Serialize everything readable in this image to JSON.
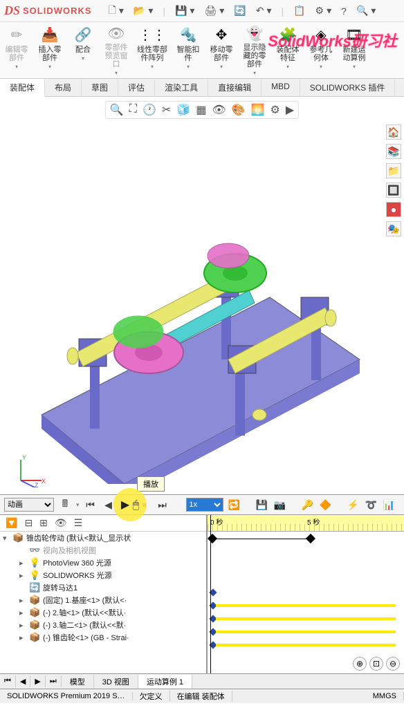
{
  "app": {
    "name": "SOLIDWORKS",
    "logo_prefix": "DS"
  },
  "watermark": "SolidWorks研习社",
  "qat": {
    "items": [
      "new",
      "open",
      "save",
      "print",
      "undo",
      "redo",
      "options",
      "rebuild",
      "settings",
      "help",
      "search"
    ]
  },
  "ribbon": {
    "items": [
      {
        "id": "edit-component",
        "label": "编辑零\n部件",
        "enabled": false
      },
      {
        "id": "insert-component",
        "label": "插入零\n部件",
        "enabled": true
      },
      {
        "id": "mate",
        "label": "配合",
        "enabled": true
      },
      {
        "id": "preview-window",
        "label": "零部件\n预览窗\n口",
        "enabled": false
      },
      {
        "id": "linear-pattern",
        "label": "线性零部\n件阵列",
        "enabled": true
      },
      {
        "id": "smart-fastener",
        "label": "智能扣\n件",
        "enabled": true
      },
      {
        "id": "move-component",
        "label": "移动零\n部件",
        "enabled": true
      },
      {
        "id": "show-hidden",
        "label": "显示隐\n藏的零\n部件",
        "enabled": true
      },
      {
        "id": "assembly-feature",
        "label": "装配体\n特征",
        "enabled": true
      },
      {
        "id": "reference-geom",
        "label": "参考几\n何体",
        "enabled": true
      },
      {
        "id": "new-motion",
        "label": "新建运\n动算例",
        "enabled": true
      }
    ]
  },
  "tabs": {
    "items": [
      "装配体",
      "布局",
      "草图",
      "评估",
      "渲染工具",
      "直接编辑",
      "MBD",
      "SOLIDWORKS 插件"
    ],
    "active": 0
  },
  "viewport": {
    "toolbar_icons": [
      "zoom-fit",
      "zoom-area",
      "zoom-prev",
      "section",
      "view-orient",
      "display-style",
      "hide-show",
      "edit-appear",
      "apply-scene",
      "view-settings",
      "render"
    ],
    "side_icons": [
      "home",
      "layers",
      "view",
      "measure",
      "appearance",
      "decal"
    ],
    "triad_axes": {
      "x": "#d33",
      "y": "#5a5",
      "z": "#55d"
    },
    "tooltip": "播放",
    "model_colors": {
      "base": "#8b8bd8",
      "shaft": "#e8e870",
      "gear1": "#e670c8",
      "gear2": "#50d050",
      "mid_shaft": "#50d0d0",
      "block": "#6a6ac8"
    }
  },
  "motion": {
    "type_label": "动画",
    "speed": "1x",
    "buttons": [
      "calc",
      "start",
      "back",
      "play",
      "stop",
      "fwd",
      "end",
      "capture",
      "save",
      "key",
      "motor"
    ],
    "highlight": "play"
  },
  "tree": {
    "root": "锥齿轮传动 (默认<默认_显示状",
    "items": [
      {
        "label": "视向及相机视图",
        "icon": "👓",
        "dim": true
      },
      {
        "label": "PhotoView 360 光源",
        "icon": "💡",
        "exp": "▸"
      },
      {
        "label": "SOLIDWORKS 光源",
        "icon": "💡",
        "exp": "▸"
      },
      {
        "label": "旋转马达1",
        "icon": "🔄",
        "color": "#2a7ad4"
      },
      {
        "label": "(固定) 1.基座<1> (默认<·",
        "icon": "📦",
        "exp": "▸",
        "gold": true
      },
      {
        "label": "(-) 2.轴<1> (默认<<默认·",
        "icon": "📦",
        "exp": "▸",
        "gold": true
      },
      {
        "label": "(-) 3.轴二<1> (默认<<默·",
        "icon": "📦",
        "exp": "▸",
        "gold": true
      },
      {
        "label": "(-) 锥齿轮<1> (GB - Strai·",
        "icon": "📦",
        "exp": "▸",
        "gold": true
      }
    ]
  },
  "timeline": {
    "start_label": "0 秒",
    "end_label": "5 秒",
    "duration": 5,
    "bar_color": "#ffeb00",
    "key_color": "#2a4aa0",
    "rows": [
      {
        "type": "bound",
        "start": 0,
        "end": 1
      },
      {
        "type": "empty"
      },
      {
        "type": "empty"
      },
      {
        "type": "empty"
      },
      {
        "type": "key",
        "at": 0
      },
      {
        "type": "bar",
        "key": 0
      },
      {
        "type": "bar",
        "key": 0
      },
      {
        "type": "bar",
        "key": 0
      },
      {
        "type": "bar",
        "key": 0
      }
    ]
  },
  "bottom_tabs": {
    "items": [
      "模型",
      "3D 视图",
      "运动算例 1"
    ],
    "active": 2
  },
  "status": {
    "product": "SOLIDWORKS Premium 2019 S…",
    "def": "欠定义",
    "edit": "在编辑 装配体",
    "units": "MMGS"
  }
}
